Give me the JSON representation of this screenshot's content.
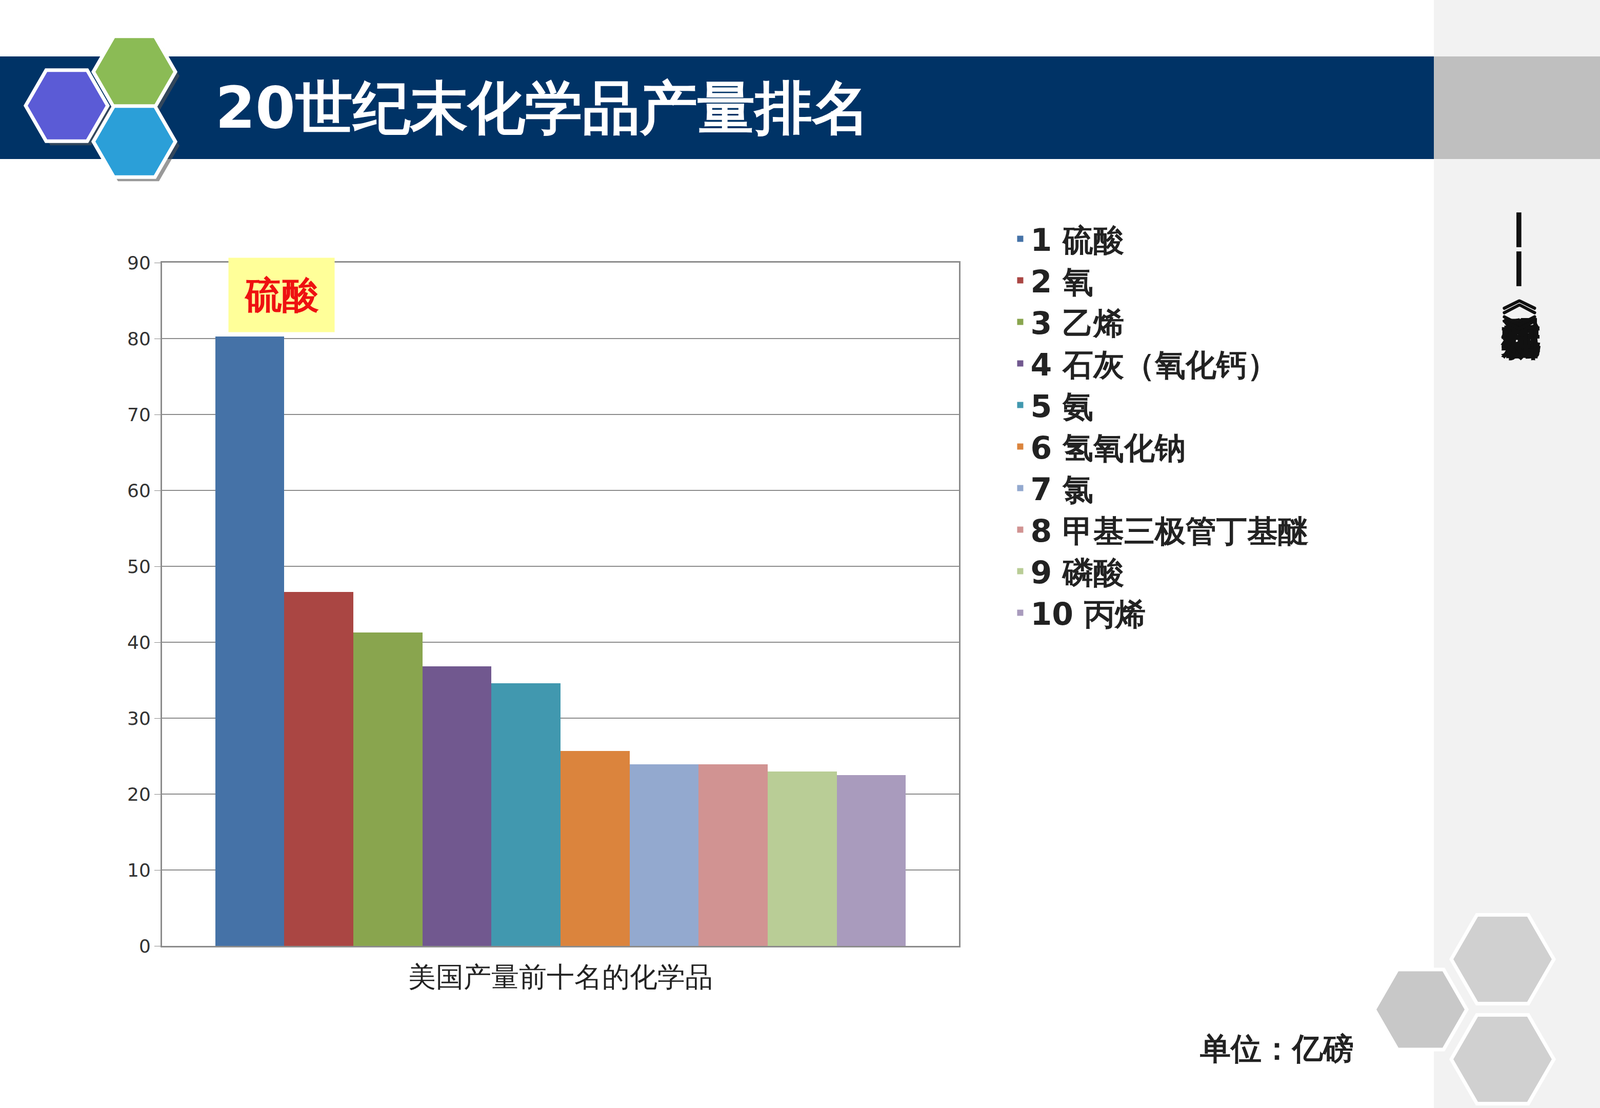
{
  "slide": {
    "source": "——选自《化学与工程新知》"
  },
  "chart_data": {
    "type": "bar",
    "title": "20世纪末化学品产量排名",
    "x_label": "美国产量前十名的化学品",
    "unit": "单位：亿磅",
    "annotations": [
      "硫酸"
    ],
    "series": [
      {
        "name": "1 硫酸",
        "color": "#4572A7",
        "values": [
          80.3
        ]
      },
      {
        "name": "2 氧",
        "color": "#AA4643",
        "values": [
          46.6
        ]
      },
      {
        "name": "3 乙烯",
        "color": "#89A54E",
        "values": [
          41.3
        ]
      },
      {
        "name": "4 石灰（氧化钙）",
        "color": "#71588F",
        "values": [
          36.8
        ]
      },
      {
        "name": "5 氨",
        "color": "#4198AF",
        "values": [
          34.6
        ]
      },
      {
        "name": "6 氢氧化钠",
        "color": "#DB843D",
        "values": [
          25.7
        ]
      },
      {
        "name": "7 氯",
        "color": "#93A9CF",
        "values": [
          23.9
        ]
      },
      {
        "name": "8 甲基三极管丁基醚",
        "color": "#D19392",
        "values": [
          23.9
        ]
      },
      {
        "name": "9 磷酸",
        "color": "#B9CD96",
        "values": [
          23.0
        ]
      },
      {
        "name": "10 丙烯",
        "color": "#A99BBD",
        "values": [
          22.5
        ]
      }
    ],
    "ylim": [
      0,
      90
    ],
    "yticks": [
      0,
      10,
      20,
      30,
      40,
      50,
      60,
      70,
      80,
      90
    ],
    "grid": true,
    "legend": "right",
    "tick_labels": "y"
  }
}
